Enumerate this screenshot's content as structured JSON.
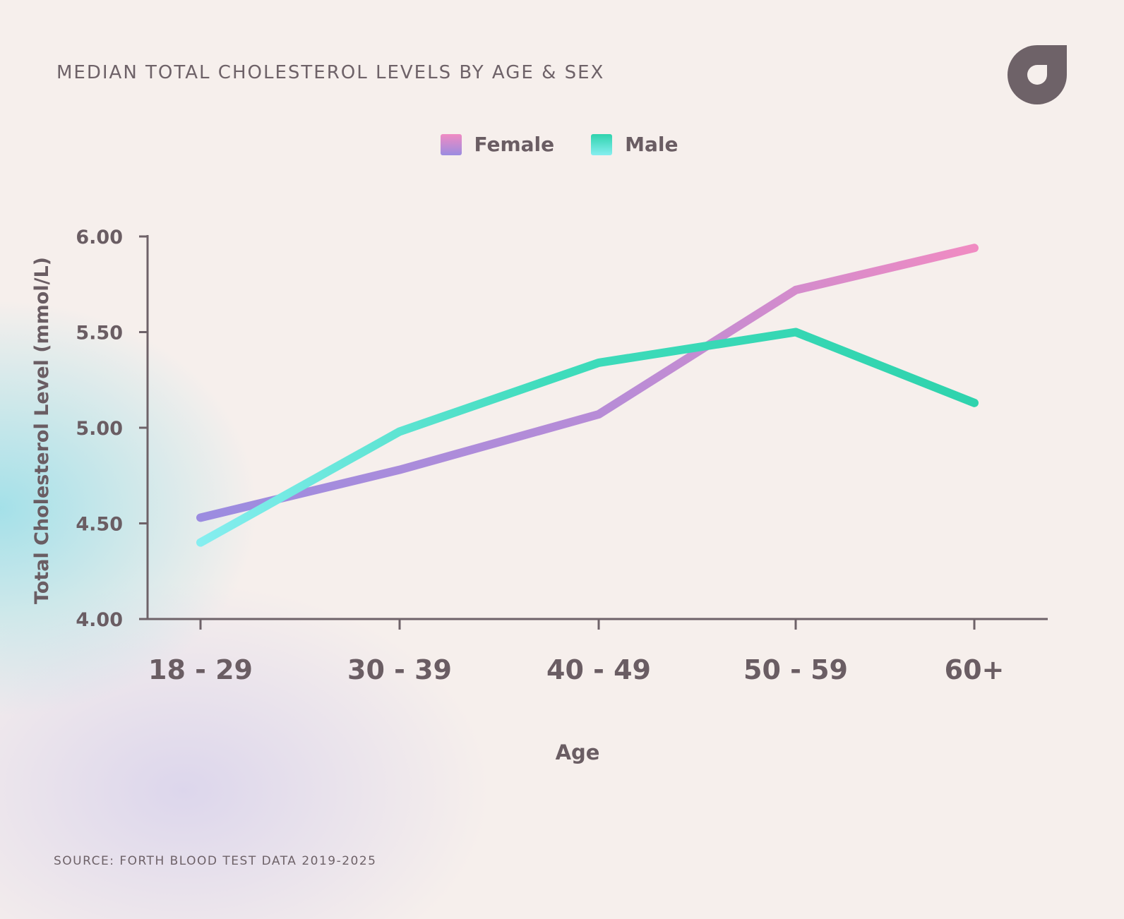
{
  "header": {
    "title": "MEDIAN TOTAL CHOLESTEROL LEVELS BY AGE & SEX"
  },
  "logo": {
    "icon": "brand-logo-icon",
    "color": "#6e6268"
  },
  "footer": {
    "source": "SOURCE: FORTH BLOOD TEST DATA 2019-2025"
  },
  "chart_data": {
    "type": "line",
    "title": "MEDIAN TOTAL CHOLESTEROL LEVELS BY AGE & SEX",
    "xlabel": "Age",
    "ylabel": "Total Cholesterol Level (mmol/L)",
    "categories": [
      "18 - 29",
      "30 - 39",
      "40 - 49",
      "50 - 59",
      "60+"
    ],
    "ylim": [
      4.0,
      6.0
    ],
    "y_ticks": [
      4.0,
      4.5,
      5.0,
      5.5,
      6.0
    ],
    "y_tick_labels": [
      "4.00",
      "4.50",
      "5.00",
      "5.50",
      "6.00"
    ],
    "legend_position": "top-center",
    "grid": false,
    "series": [
      {
        "name": "Female",
        "values": [
          4.53,
          4.78,
          5.07,
          5.72,
          5.94
        ],
        "color_start": "#9b8ce0",
        "color_end": "#f08bc2"
      },
      {
        "name": "Male",
        "values": [
          4.4,
          4.98,
          5.34,
          5.5,
          5.13
        ],
        "color_start": "#86eef0",
        "color_end": "#2fd3ad"
      }
    ]
  }
}
